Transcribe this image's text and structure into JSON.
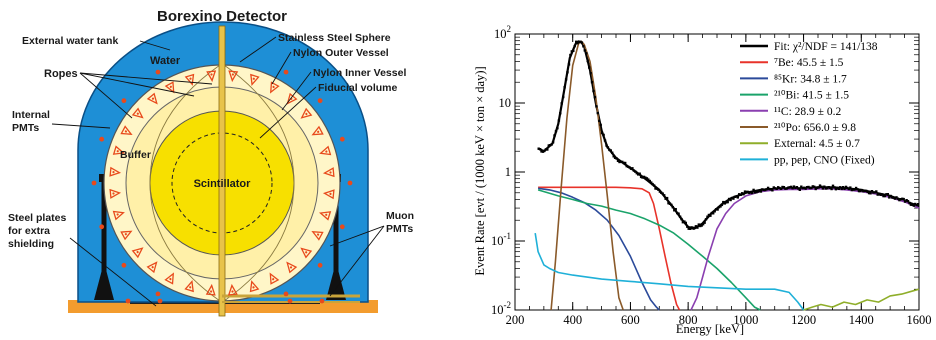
{
  "detector": {
    "title": "Borexino Detector",
    "labels": {
      "external_water_tank": "External water tank",
      "water": "Water",
      "ropes": "Ropes",
      "internal_pmts_1": "Internal",
      "internal_pmts_2": "PMTs",
      "buffer": "Buffer",
      "steel_plates_1": "Steel plates",
      "steel_plates_2": "for extra",
      "steel_plates_3": "shielding",
      "stainless_steel_sphere": "Stainless Steel Sphere",
      "nylon_outer_vessel": "Nylon Outer Vessel",
      "nylon_inner_vessel": "Nylon Inner Vessel",
      "fiducial_volume": "Fiducial volume",
      "scintillator": "Scintillator",
      "muon_pmts_1": "Muon",
      "muon_pmts_2": "PMTs"
    },
    "colors": {
      "water": "#1e8fd6",
      "buffer": "#fff6c8",
      "outer_vessel": "#fff0a8",
      "scintillator": "#f7e000",
      "floor": "#f39c2e",
      "pmt": "#e84a1c"
    }
  },
  "chart_data": {
    "type": "line",
    "yscale": "log",
    "xlabel": "Energy [keV]",
    "ylabel": "Event Rate [evt / (1000 keV × ton × day)]",
    "xlim": [
      200,
      1600
    ],
    "ylim": [
      0.01,
      100
    ],
    "xticks": [
      "200",
      "400",
      "600",
      "800",
      "1000",
      "1200",
      "1400",
      "1600"
    ],
    "yticks": [
      "10^-2",
      "10^-1",
      "1",
      "10",
      "10^2"
    ],
    "legend_position": "top-right",
    "legend": [
      {
        "label": "Fit: χ²/NDF = 141/138",
        "color": "#000000"
      },
      {
        "label": "⁷Be: 45.5 ± 1.5",
        "color": "#e8332a"
      },
      {
        "label": "⁸⁵Kr: 34.8 ± 1.7",
        "color": "#2b4a9a"
      },
      {
        "label": "²¹⁰Bi: 41.5 ± 1.5",
        "color": "#1aa36a"
      },
      {
        "label": "¹¹C: 28.9 ± 0.2",
        "color": "#8a3fb0"
      },
      {
        "label": "²¹⁰Po: 656.0 ± 9.8",
        "color": "#8a5a2a"
      },
      {
        "label": "External: 4.5 ± 0.7",
        "color": "#8fae2a"
      },
      {
        "label": "pp, pep, CNO (Fixed)",
        "color": "#1fb0d8"
      }
    ],
    "series": [
      {
        "name": "Fit: χ²/NDF = 141/138",
        "color": "#000000",
        "x": [
          280,
          300,
          330,
          350,
          370,
          390,
          410,
          420,
          430,
          440,
          460,
          480,
          500,
          520,
          550,
          580,
          620,
          660,
          700,
          750,
          780,
          800,
          820,
          850,
          880,
          920,
          950,
          1000,
          1050,
          1100,
          1150,
          1200,
          1250,
          1300,
          1350,
          1400,
          1450,
          1500,
          1550,
          1600
        ],
        "y": [
          2.2,
          2.0,
          2.6,
          5,
          15,
          45,
          72,
          78,
          76,
          65,
          30,
          10,
          4,
          2.3,
          1.6,
          1.3,
          1.0,
          0.75,
          0.55,
          0.3,
          0.2,
          0.16,
          0.15,
          0.18,
          0.25,
          0.35,
          0.42,
          0.5,
          0.55,
          0.57,
          0.58,
          0.58,
          0.6,
          0.6,
          0.58,
          0.55,
          0.5,
          0.45,
          0.38,
          0.32
        ]
      },
      {
        "name": "⁷Be: 45.5 ± 1.5",
        "color": "#e8332a",
        "x": [
          280,
          350,
          400,
          450,
          500,
          550,
          600,
          640,
          665,
          680,
          700,
          720,
          740,
          760,
          770
        ],
        "y": [
          0.6,
          0.6,
          0.6,
          0.6,
          0.6,
          0.6,
          0.59,
          0.57,
          0.5,
          0.35,
          0.15,
          0.06,
          0.025,
          0.012,
          0.01
        ]
      },
      {
        "name": "⁸⁵Kr: 34.8 ± 1.7",
        "color": "#2b4a9a",
        "x": [
          280,
          320,
          360,
          400,
          440,
          480,
          520,
          560,
          600,
          640,
          670,
          690,
          700
        ],
        "y": [
          0.58,
          0.55,
          0.5,
          0.43,
          0.36,
          0.28,
          0.2,
          0.12,
          0.06,
          0.025,
          0.014,
          0.011,
          0.01
        ]
      },
      {
        "name": "²¹⁰Bi: 41.5 ± 1.5",
        "color": "#1aa36a",
        "x": [
          280,
          350,
          400,
          450,
          500,
          550,
          600,
          650,
          700,
          750,
          800,
          850,
          900,
          950,
          1000,
          1030,
          1050
        ],
        "y": [
          0.55,
          0.45,
          0.4,
          0.35,
          0.32,
          0.28,
          0.25,
          0.21,
          0.17,
          0.13,
          0.09,
          0.06,
          0.04,
          0.025,
          0.015,
          0.011,
          0.01
        ]
      },
      {
        "name": "¹¹C: 28.9 ± 0.2",
        "color": "#8a3fb0",
        "x": [
          810,
          830,
          850,
          870,
          900,
          930,
          960,
          1000,
          1050,
          1100,
          1150,
          1200,
          1250,
          1300,
          1350,
          1400,
          1450,
          1500,
          1550,
          1600
        ],
        "y": [
          0.01,
          0.015,
          0.03,
          0.06,
          0.15,
          0.25,
          0.35,
          0.45,
          0.52,
          0.55,
          0.56,
          0.56,
          0.57,
          0.57,
          0.55,
          0.52,
          0.48,
          0.43,
          0.37,
          0.3
        ]
      },
      {
        "name": "²¹⁰Po: 656.0 ± 9.8",
        "color": "#8a5a2a",
        "x": [
          325,
          340,
          360,
          380,
          400,
          420,
          430,
          440,
          460,
          480,
          500,
          520,
          540,
          560,
          575
        ],
        "y": [
          0.01,
          0.05,
          0.6,
          6,
          35,
          72,
          78,
          70,
          40,
          12,
          2.5,
          0.45,
          0.07,
          0.015,
          0.01
        ]
      },
      {
        "name": "External: 4.5 ± 0.7",
        "color": "#8fae2a",
        "x": [
          1200,
          1230,
          1260,
          1300,
          1340,
          1380,
          1420,
          1460,
          1500,
          1540,
          1580,
          1600
        ],
        "y": [
          0.01,
          0.011,
          0.012,
          0.011,
          0.013,
          0.012,
          0.014,
          0.013,
          0.016,
          0.017,
          0.019,
          0.02
        ]
      },
      {
        "name": "pp, pep, CNO (Fixed)",
        "color": "#1fb0d8",
        "x": [
          270,
          280,
          300,
          320,
          350,
          400,
          450,
          500,
          600,
          700,
          800,
          900,
          1000,
          1100,
          1150,
          1180,
          1200
        ],
        "y": [
          0.13,
          0.07,
          0.045,
          0.04,
          0.035,
          0.032,
          0.03,
          0.028,
          0.026,
          0.024,
          0.022,
          0.021,
          0.02,
          0.02,
          0.018,
          0.013,
          0.01
        ]
      }
    ]
  }
}
